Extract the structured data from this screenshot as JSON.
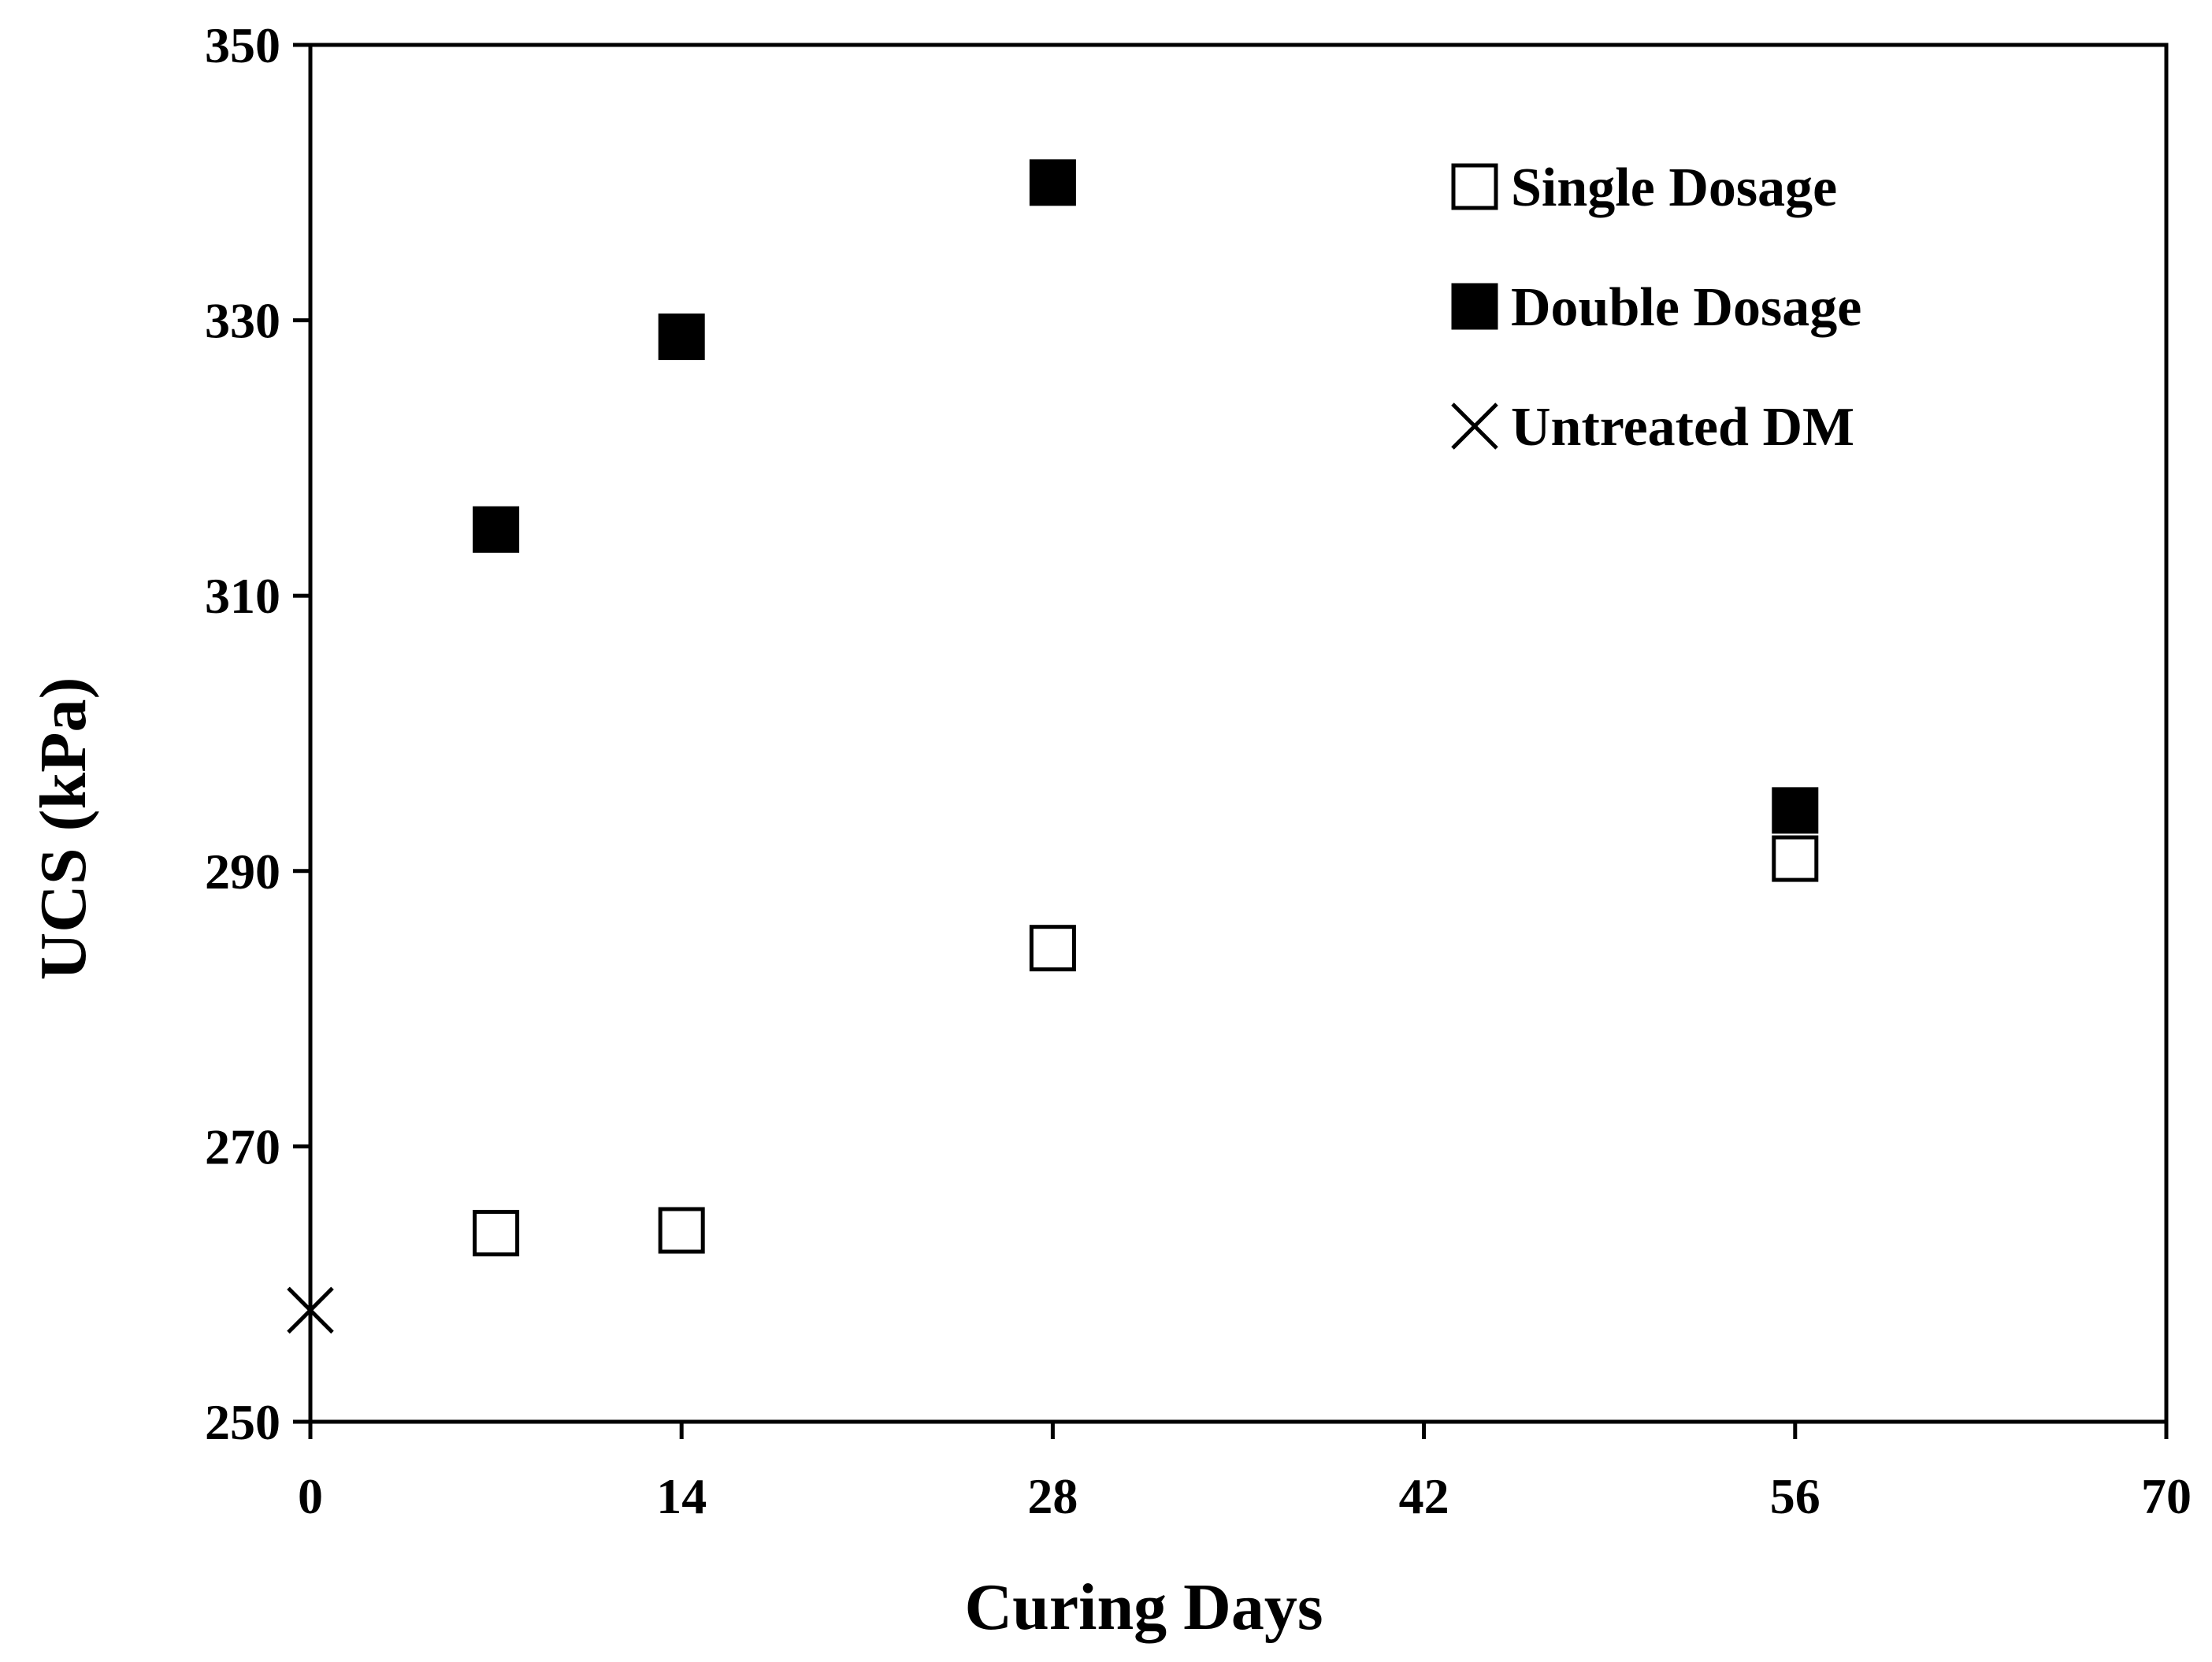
{
  "chart_data": {
    "type": "scatter",
    "title": "",
    "xlabel": "Curing Days",
    "ylabel": "UCS (kPa)",
    "xlim": [
      0,
      70
    ],
    "ylim": [
      250,
      350
    ],
    "xticks": [
      0,
      14,
      28,
      42,
      56,
      70
    ],
    "yticks": [
      250,
      270,
      290,
      310,
      330,
      350
    ],
    "grid": false,
    "legend_position": "top-right",
    "series": [
      {
        "name": "Single Dosage",
        "marker": "open-square",
        "color": "#000000",
        "x": [
          7,
          14,
          28,
          56
        ],
        "y": [
          263.7,
          263.9,
          284.4,
          290.9
        ]
      },
      {
        "name": "Double Dosage",
        "marker": "filled-square",
        "color": "#000000",
        "x": [
          7,
          14,
          28,
          56
        ],
        "y": [
          314.8,
          328.8,
          340,
          294.4
        ]
      },
      {
        "name": "Untreated DM",
        "marker": "cross",
        "color": "#000000",
        "x": [
          0
        ],
        "y": [
          258.1
        ]
      }
    ]
  }
}
